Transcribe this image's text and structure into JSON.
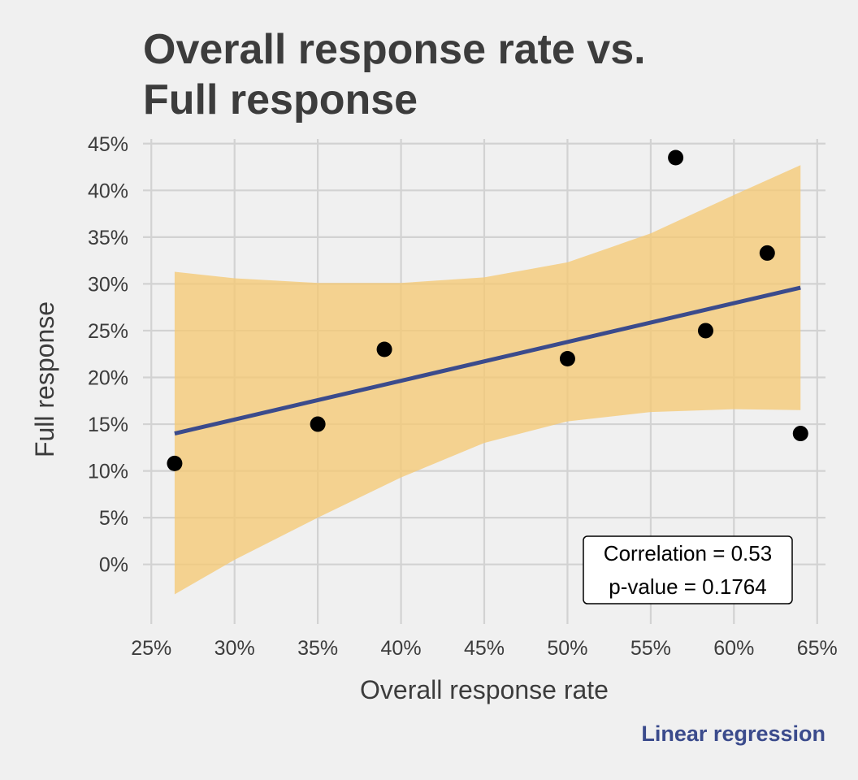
{
  "title_lines": [
    "Overall response rate vs.",
    "Full response"
  ],
  "caption": "Linear regression",
  "colors": {
    "background": "#f0f0f0",
    "grid": "#d2d2d2",
    "band": "#f5c870",
    "line": "#3b4b8c",
    "points": "#000000",
    "text": "#3c3c3c"
  },
  "chart_data": {
    "type": "scatter",
    "title": "Overall response rate vs. Full response",
    "xlabel": "Overall response rate",
    "ylabel": "Full response",
    "xlim": [
      24.5,
      65.5
    ],
    "ylim": [
      -5.5,
      45.5
    ],
    "x_ticks": [
      25,
      30,
      35,
      40,
      45,
      50,
      55,
      60,
      65
    ],
    "y_ticks": [
      0,
      5,
      10,
      15,
      20,
      25,
      30,
      35,
      40,
      45
    ],
    "x_tick_labels": [
      "25%",
      "30%",
      "35%",
      "40%",
      "45%",
      "50%",
      "55%",
      "60%",
      "65%"
    ],
    "y_tick_labels": [
      "0%",
      "5%",
      "10%",
      "15%",
      "20%",
      "25%",
      "30%",
      "35%",
      "40%",
      "45%"
    ],
    "grid": true,
    "points": [
      {
        "x": 26.4,
        "y": 10.8
      },
      {
        "x": 35.0,
        "y": 15.0
      },
      {
        "x": 39.0,
        "y": 23.0
      },
      {
        "x": 50.0,
        "y": 22.0
      },
      {
        "x": 56.5,
        "y": 43.5
      },
      {
        "x": 58.3,
        "y": 25.0
      },
      {
        "x": 62.0,
        "y": 33.3
      },
      {
        "x": 64.0,
        "y": 14.0
      }
    ],
    "regression_line": [
      {
        "x": 26.4,
        "y": 14.0
      },
      {
        "x": 64.0,
        "y": 29.6
      }
    ],
    "confidence_band": {
      "x": [
        26.4,
        30.0,
        35.0,
        40.0,
        45.0,
        50.0,
        55.0,
        60.0,
        64.0
      ],
      "upper": [
        31.3,
        30.6,
        30.1,
        30.1,
        30.7,
        32.3,
        35.4,
        39.5,
        42.7
      ],
      "lower": [
        -3.2,
        0.5,
        5.0,
        9.3,
        13.0,
        15.3,
        16.3,
        16.6,
        16.5
      ]
    },
    "annotation": [
      "Correlation = 0.53",
      "p-value = 0.1764"
    ]
  }
}
